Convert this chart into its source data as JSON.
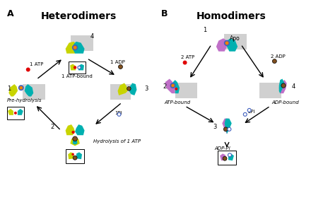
{
  "title_A": "Heterodimers",
  "title_B": "Homodimers",
  "label_A": "A",
  "label_B": "B",
  "color_yellow": "#c8d400",
  "color_teal": "#00b0b0",
  "color_purple": "#c070c8",
  "color_gray": "#d0d0d0",
  "color_orange": "#f08000",
  "color_red": "#e00000",
  "color_blue_circle": "#4060c0",
  "color_brown": "#805020",
  "color_white": "#ffffff",
  "color_black": "#000000",
  "background": "#ffffff",
  "fontsize_title": 10,
  "fontsize_label": 8,
  "fontsize_step": 7
}
